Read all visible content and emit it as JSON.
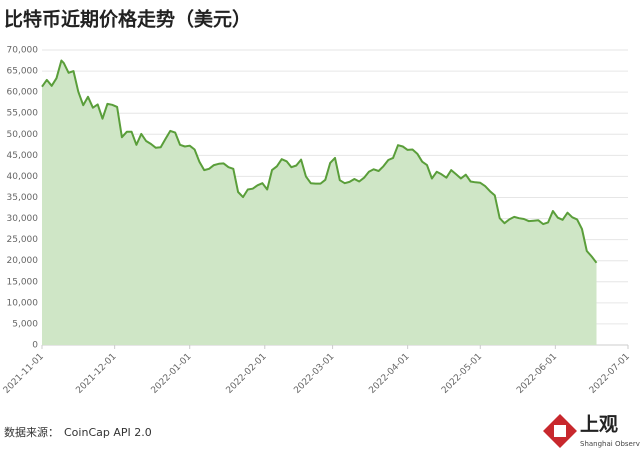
{
  "chart_data": {
    "type": "area",
    "title": "比特币近期价格走势（美元）",
    "x": [
      "2021-11-01",
      "2021-11-03",
      "2021-11-05",
      "2021-11-07",
      "2021-11-09",
      "2021-11-10",
      "2021-11-12",
      "2021-11-14",
      "2021-11-16",
      "2021-11-18",
      "2021-11-20",
      "2021-11-22",
      "2021-11-24",
      "2021-11-26",
      "2021-11-28",
      "2021-11-30",
      "2021-12-02",
      "2021-12-04",
      "2021-12-06",
      "2021-12-08",
      "2021-12-10",
      "2021-12-12",
      "2021-12-14",
      "2021-12-16",
      "2021-12-18",
      "2021-12-20",
      "2021-12-22",
      "2021-12-24",
      "2021-12-26",
      "2021-12-28",
      "2021-12-30",
      "2022-01-01",
      "2022-01-03",
      "2022-01-05",
      "2022-01-07",
      "2022-01-09",
      "2022-01-11",
      "2022-01-13",
      "2022-01-15",
      "2022-01-17",
      "2022-01-19",
      "2022-01-21",
      "2022-01-23",
      "2022-01-25",
      "2022-01-27",
      "2022-01-29",
      "2022-01-31",
      "2022-02-02",
      "2022-02-04",
      "2022-02-06",
      "2022-02-08",
      "2022-02-10",
      "2022-02-12",
      "2022-02-14",
      "2022-02-16",
      "2022-02-18",
      "2022-02-20",
      "2022-02-22",
      "2022-02-24",
      "2022-02-26",
      "2022-02-28",
      "2022-03-02",
      "2022-03-04",
      "2022-03-06",
      "2022-03-08",
      "2022-03-10",
      "2022-03-12",
      "2022-03-14",
      "2022-03-16",
      "2022-03-18",
      "2022-03-20",
      "2022-03-22",
      "2022-03-24",
      "2022-03-26",
      "2022-03-28",
      "2022-03-30",
      "2022-04-01",
      "2022-04-03",
      "2022-04-05",
      "2022-04-07",
      "2022-04-09",
      "2022-04-11",
      "2022-04-13",
      "2022-04-15",
      "2022-04-17",
      "2022-04-19",
      "2022-04-21",
      "2022-04-23",
      "2022-04-25",
      "2022-04-27",
      "2022-04-29",
      "2022-05-01",
      "2022-05-03",
      "2022-05-05",
      "2022-05-07",
      "2022-05-09",
      "2022-05-11",
      "2022-05-13",
      "2022-05-15",
      "2022-05-17",
      "2022-05-19",
      "2022-05-21",
      "2022-05-23",
      "2022-05-25",
      "2022-05-27",
      "2022-05-29",
      "2022-05-31",
      "2022-06-02",
      "2022-06-04",
      "2022-06-06",
      "2022-06-08",
      "2022-06-10",
      "2022-06-12",
      "2022-06-14",
      "2022-06-16",
      "2022-06-18"
    ],
    "values": [
      61300,
      62900,
      61500,
      63300,
      67500,
      66900,
      64600,
      65000,
      60100,
      56900,
      58900,
      56300,
      57100,
      53700,
      57200,
      57000,
      56500,
      49300,
      50600,
      50600,
      47500,
      50100,
      48400,
      47700,
      46800,
      46900,
      48900,
      50800,
      50400,
      47500,
      47100,
      47300,
      46400,
      43500,
      41500,
      41800,
      42700,
      43000,
      43100,
      42200,
      41800,
      36300,
      35100,
      36900,
      37100,
      37900,
      38400,
      36900,
      41500,
      42400,
      44100,
      43600,
      42200,
      42600,
      44000,
      40000,
      38400,
      38300,
      38300,
      39200,
      43200,
      44400,
      39100,
      38400,
      38700,
      39400,
      38800,
      39700,
      41100,
      41700,
      41300,
      42400,
      43900,
      44400,
      47400,
      47100,
      46300,
      46400,
      45400,
      43500,
      42700,
      39500,
      41100,
      40500,
      39700,
      41500,
      40500,
      39500,
      40400,
      38800,
      38600,
      38500,
      37700,
      36500,
      35500,
      30100,
      28900,
      29800,
      30400,
      30100,
      29900,
      29400,
      29500,
      29600,
      28700,
      29100,
      31800,
      30200,
      29700,
      31400,
      30300,
      29800,
      27500,
      22300,
      21000,
      19500
    ],
    "color": "#5a9e3a",
    "fill_color": "#cfe6c6",
    "xlim": [
      "2021-11-01",
      "2022-07-01"
    ],
    "xticks": [
      "2021-11-01",
      "2021-12-01",
      "2022-01-01",
      "2022-02-01",
      "2022-03-01",
      "2022-04-01",
      "2022-05-01",
      "2022-06-01",
      "2022-07-01"
    ],
    "ylim": [
      0,
      70000
    ],
    "yticks": [
      0,
      {
        "value": 5000,
        "label": "5,000"
      },
      {
        "value": 10000,
        "label": "10,000"
      },
      {
        "value": 15000,
        "label": "15,000"
      },
      {
        "value": 20000,
        "label": "20,000"
      },
      {
        "value": 25000,
        "label": "25,000"
      },
      {
        "value": 30000,
        "label": "30,000"
      },
      {
        "value": 35000,
        "label": "35,000"
      },
      {
        "value": 40000,
        "label": "40,000"
      },
      {
        "value": 45000,
        "label": "45,000"
      },
      {
        "value": 50000,
        "label": "50,000"
      },
      {
        "value": 55000,
        "label": "55,000"
      },
      {
        "value": 60000,
        "label": "60,000"
      },
      {
        "value": 65000,
        "label": "65,000"
      },
      {
        "value": 70000,
        "label": "70,000"
      }
    ],
    "grid": true
  },
  "footer": {
    "source_label": "数据来源：",
    "source": "CoinCap API 2.0",
    "logo_text": "上观",
    "logo_subtext": "Shanghai Observer"
  }
}
